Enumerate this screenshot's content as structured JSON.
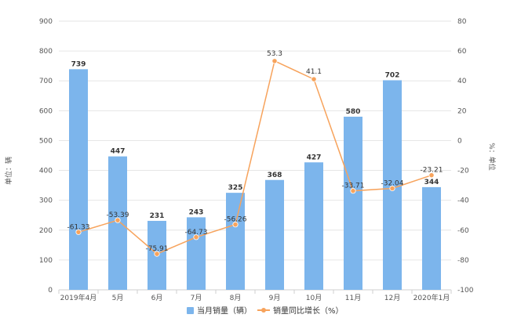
{
  "chart_data": {
    "type": "bar+line",
    "title": "",
    "categories": [
      "2019年4月",
      "5月",
      "6月",
      "7月",
      "8月",
      "9月",
      "10月",
      "11月",
      "12月",
      "2020年1月"
    ],
    "series": [
      {
        "name": "当月销量（辆）",
        "type": "bar",
        "axis": "left",
        "color": "#7cb5ec",
        "values": [
          739,
          447,
          231,
          243,
          325,
          368,
          427,
          580,
          702,
          344
        ],
        "labels": [
          "739",
          "447",
          "231",
          "243",
          "325",
          "368",
          "427",
          "580",
          "702",
          "344"
        ]
      },
      {
        "name": "销量同比增长（%）",
        "type": "line",
        "axis": "right",
        "color": "#f7a35c",
        "values": [
          -61.33,
          -53.39,
          -75.91,
          -64.73,
          -56.26,
          53.3,
          41.1,
          -33.71,
          -32.04,
          -23.21
        ],
        "labels": [
          "-61.33",
          "-53.39",
          "-75.91",
          "-64.73",
          "-56.26",
          "53.3",
          "41.1",
          "-33.71",
          "-32.04",
          "-23.21"
        ]
      }
    ],
    "y_left": {
      "label": "单位：辆",
      "lim": [
        0,
        900
      ],
      "ticks": [
        0,
        100,
        200,
        300,
        400,
        500,
        600,
        700,
        800,
        900
      ]
    },
    "y_right": {
      "label": "%：单位",
      "lim": [
        -100,
        80
      ],
      "ticks": [
        -100,
        -80,
        -60,
        -40,
        -20,
        0,
        20,
        40,
        60,
        80
      ]
    },
    "grid": true,
    "legend_position": "bottom-center"
  }
}
